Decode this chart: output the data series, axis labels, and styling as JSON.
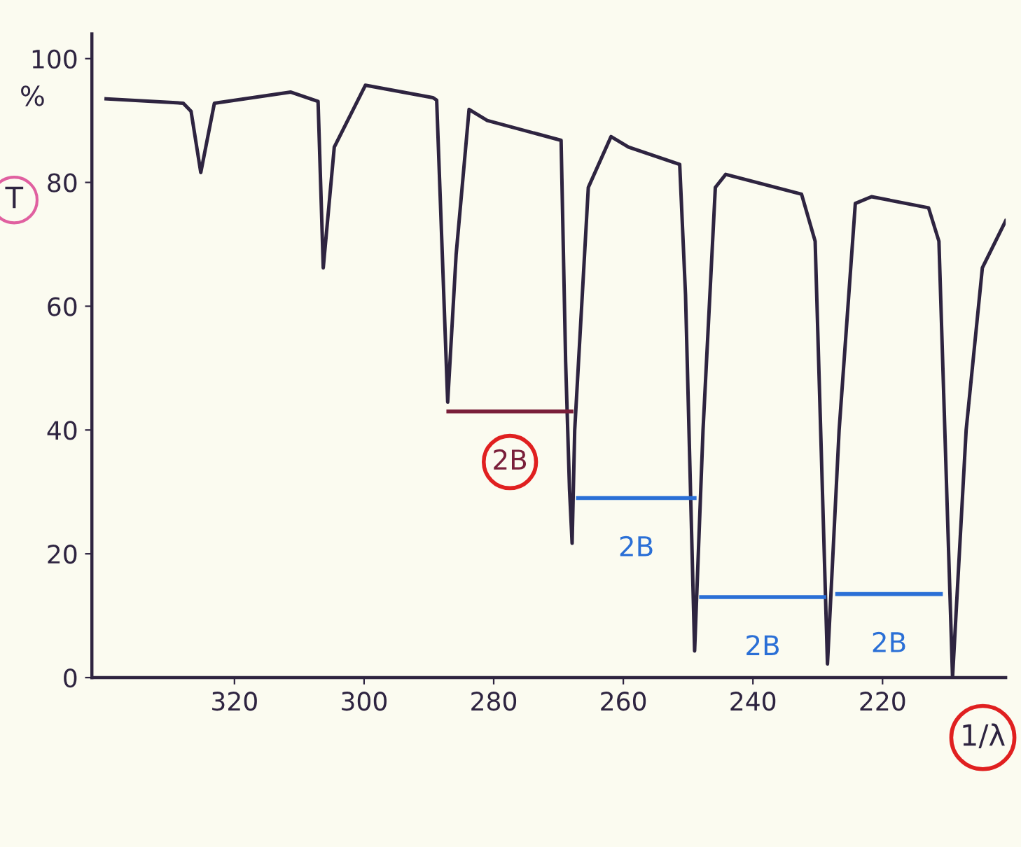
{
  "chart_data": {
    "type": "line",
    "ylabel": "T",
    "xlabel": "1/λ",
    "xlim": [
      342,
      201
    ],
    "ylim": [
      0,
      104
    ],
    "xticks": [
      320,
      300,
      280,
      260,
      240,
      220
    ],
    "yticks": [
      0,
      20,
      40,
      60,
      80,
      100
    ],
    "grid": false,
    "line_style": "solid",
    "marker": "none",
    "series": [
      {
        "color": "#2e2440",
        "x": [
          339.8,
          327.9,
          326.7,
          325.2,
          323.1,
          311.3,
          307.1,
          306.3,
          304.6,
          299.8,
          289.4,
          288.8,
          287.1,
          285.8,
          283.8,
          281.0,
          269.6,
          268.9,
          268.3,
          267.9,
          267.5,
          265.4,
          261.9,
          259.2,
          251.3,
          250.4,
          249.0,
          247.7,
          245.8,
          244.2,
          232.5,
          230.4,
          228.5,
          226.7,
          224.2,
          221.7,
          212.9,
          211.3,
          209.2,
          207.1,
          204.6,
          201.0
        ],
        "values": [
          93.5,
          92.8,
          91.5,
          81.6,
          92.8,
          94.6,
          93.1,
          66.2,
          85.7,
          95.7,
          93.7,
          93.3,
          44.5,
          68.3,
          91.8,
          90.0,
          86.8,
          51.0,
          30.4,
          21.7,
          40.0,
          79.2,
          87.4,
          85.7,
          82.9,
          61.8,
          4.3,
          40.0,
          79.2,
          81.3,
          78.1,
          70.5,
          2.2,
          40.0,
          76.6,
          77.7,
          75.9,
          70.5,
          0,
          40.0,
          66.2,
          73.8
        ]
      },
      {
        "color": "#7a1f3a",
        "x": [
          287,
          268
        ],
        "values": [
          43,
          43
        ]
      },
      {
        "color": "#2a6fd6",
        "x": [
          267,
          249
        ],
        "values": [
          29,
          29
        ]
      },
      {
        "color": "#2a6fd6",
        "x": [
          248,
          229
        ],
        "values": [
          13,
          13
        ]
      },
      {
        "color": "#2a6fd6",
        "x": [
          227,
          211
        ],
        "values": [
          13.5,
          13.5
        ]
      }
    ],
    "annotations": [
      {
        "text": "2B",
        "x": 277.5,
        "y": 43
      },
      {
        "text": "2B",
        "x": 258,
        "y": 29
      },
      {
        "text": "2B",
        "x": 238.5,
        "y": 13
      },
      {
        "text": "2B",
        "x": 219,
        "y": 13.5
      },
      "%"
    ]
  }
}
